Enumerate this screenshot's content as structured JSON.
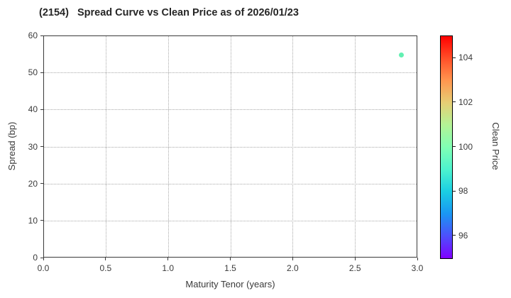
{
  "header": {
    "title": "(2154)   Spread Curve vs Clean Price as of 2026/01/23"
  },
  "chart_data": {
    "type": "scatter",
    "title": "(2154)   Spread Curve vs Clean Price as of 2026/01/23",
    "xlabel": "Maturity Tenor (years)",
    "ylabel": "Spread (bp)",
    "xlim": [
      0.0,
      3.0
    ],
    "ylim": [
      0,
      60
    ],
    "grid": "dotted",
    "legend": "none",
    "x_ticks": {
      "values": [
        0.0,
        0.5,
        1.0,
        1.5,
        2.0,
        2.5,
        3.0
      ],
      "labels": [
        "0.0",
        "0.5",
        "1.0",
        "1.5",
        "2.0",
        "2.5",
        "3.0"
      ]
    },
    "y_ticks": {
      "values": [
        0,
        10,
        20,
        30,
        40,
        50,
        60
      ],
      "labels": [
        "0",
        "10",
        "20",
        "30",
        "40",
        "50",
        "60"
      ]
    },
    "points": [
      {
        "x": 2.87,
        "y": 54.7,
        "clean_price": 99.7,
        "color": "#62f0b2"
      }
    ],
    "colorbar": {
      "label": "Clean Price",
      "range": [
        95,
        105
      ],
      "colormap": "rainbow",
      "ticks": {
        "values": [
          96,
          98,
          100,
          102,
          104
        ],
        "labels": [
          "96",
          "98",
          "100",
          "102",
          "104"
        ]
      },
      "gradient_stops": [
        {
          "pos": 0.0,
          "color": "#8000ff"
        },
        {
          "pos": 0.1,
          "color": "#4d4ffc"
        },
        {
          "pos": 0.2,
          "color": "#1a96f3"
        },
        {
          "pos": 0.3,
          "color": "#1acee3"
        },
        {
          "pos": 0.4,
          "color": "#4df3ce"
        },
        {
          "pos": 0.5,
          "color": "#80ffb4"
        },
        {
          "pos": 0.6,
          "color": "#b3f396"
        },
        {
          "pos": 0.7,
          "color": "#e6ce74"
        },
        {
          "pos": 0.8,
          "color": "#ff964f"
        },
        {
          "pos": 0.9,
          "color": "#ff4f28"
        },
        {
          "pos": 1.0,
          "color": "#ff0000"
        }
      ]
    },
    "colors": {
      "frame": "#3a3a3a",
      "grid": "#a9a9a9",
      "text": "#3a3a3a",
      "title": "#262626",
      "background": "#ffffff"
    }
  }
}
